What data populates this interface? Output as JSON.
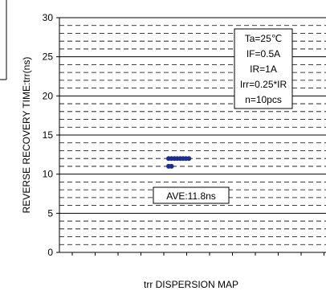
{
  "chart_data": {
    "type": "scatter",
    "title": "",
    "xlabel": "trr DISPERSION MAP",
    "ylabel": "REVERSE RECOVERY TIME:trr(ns)",
    "ylim": [
      0,
      30
    ],
    "y_ticks": [
      "0",
      "5",
      "10",
      "15",
      "20",
      "25",
      "30"
    ],
    "grid": "dashed horizontal lines every 1 ns, solid every 5 ns",
    "points": [
      {
        "x": 0,
        "y": 12.0
      },
      {
        "x": 1,
        "y": 12.0
      },
      {
        "x": 2,
        "y": 12.0
      },
      {
        "x": 3,
        "y": 12.0
      },
      {
        "x": 4,
        "y": 12.0
      },
      {
        "x": 5,
        "y": 12.0
      },
      {
        "x": 6,
        "y": 12.0
      },
      {
        "x": 7,
        "y": 12.0
      },
      {
        "x": 0,
        "y": 11.0
      },
      {
        "x": 1,
        "y": 11.0
      }
    ],
    "annotations": {
      "conditions": [
        "Ta=25℃",
        "IF=0.5A",
        "IR=1A",
        "Irr=0.25*IR",
        "n=10pcs"
      ],
      "average": "AVE:11.8ns"
    },
    "colors": {
      "points": "#1a2f8c",
      "grid": "#000000"
    }
  }
}
